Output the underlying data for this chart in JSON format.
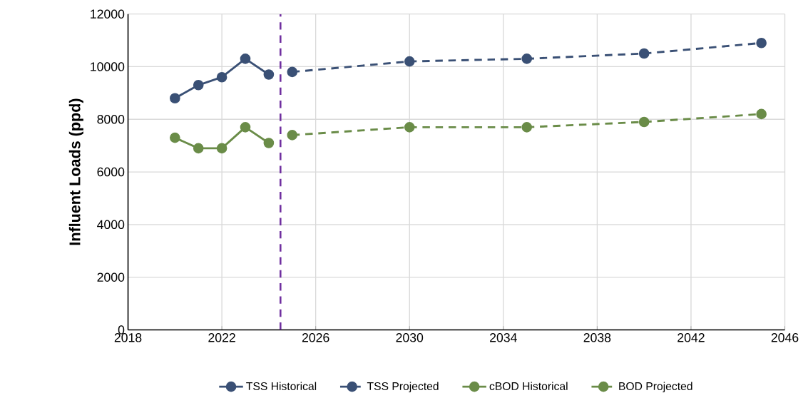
{
  "chart_data": {
    "type": "line",
    "ylabel": "Influent Loads (ppd)",
    "xlim": [
      2018,
      2046
    ],
    "xticks": [
      2018,
      2022,
      2026,
      2030,
      2034,
      2038,
      2042,
      2046
    ],
    "ylim": [
      0,
      12000
    ],
    "yticks": [
      0,
      2000,
      4000,
      6000,
      8000,
      10000,
      12000
    ],
    "grid": true,
    "legend": "bottom",
    "marker": "circle",
    "ref_lines": [
      {
        "axis": "x",
        "value": 2024.5,
        "color": "#7030a0",
        "line_style": "dashed"
      }
    ],
    "series": [
      {
        "name": "TSS Historical",
        "color": "#3a5075",
        "line_style": "solid",
        "x": [
          2020,
          2021,
          2022,
          2023,
          2024
        ],
        "values": [
          8800,
          9300,
          9600,
          10300,
          9700
        ]
      },
      {
        "name": "TSS Projected",
        "color": "#3a5075",
        "line_style": "dashed",
        "x": [
          2025,
          2030,
          2035,
          2040,
          2045
        ],
        "values": [
          9800,
          10200,
          10300,
          10500,
          10900
        ]
      },
      {
        "name": "cBOD Historical",
        "color": "#6a8c48",
        "line_style": "solid",
        "x": [
          2020,
          2021,
          2022,
          2023,
          2024
        ],
        "values": [
          7300,
          6900,
          6900,
          7700,
          7100
        ]
      },
      {
        "name": "BOD Projected",
        "color": "#6a8c48",
        "line_style": "dashed",
        "x": [
          2025,
          2030,
          2035,
          2040,
          2045
        ],
        "values": [
          7400,
          7700,
          7700,
          7900,
          8200
        ]
      }
    ]
  }
}
